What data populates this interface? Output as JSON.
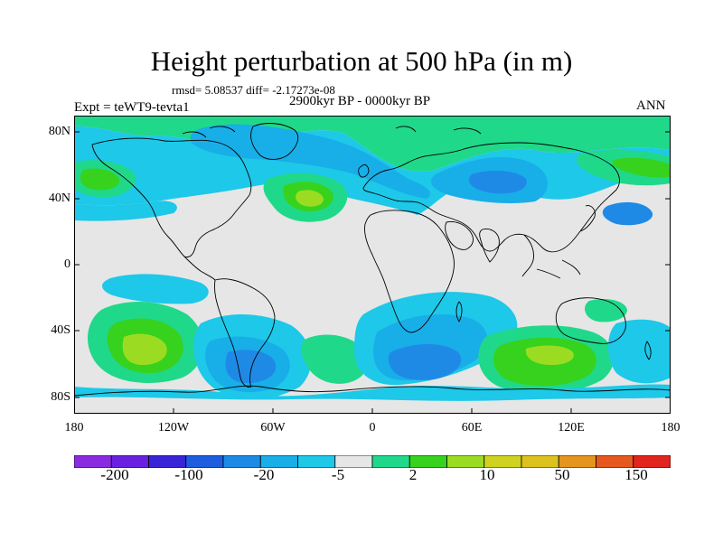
{
  "title": "Height perturbation at 500 hPa (in m)",
  "stats": "rmsd= 5.08537 diff= -2.17273e-08",
  "period": "2900kyr BP - 0000kyr BP",
  "experiment": "Expt = teWT9-tevta1",
  "season": "ANN",
  "lat_labels": [
    "80N",
    "40N",
    "0",
    "40S",
    "80S"
  ],
  "lon_labels": [
    "180",
    "120W",
    "60W",
    "0",
    "60E",
    "120E",
    "180"
  ],
  "colorbar": {
    "labels": [
      "-200",
      "-100",
      "-20",
      "-5",
      "2",
      "10",
      "50",
      "150"
    ],
    "colors": [
      "#8a2be2",
      "#6a20e0",
      "#3a24d8",
      "#1e5de0",
      "#1f8ae6",
      "#18aee8",
      "#1ec8e8",
      "#e6e6e6",
      "#20d88a",
      "#36d21e",
      "#9bdc22",
      "#cfd21e",
      "#dcc21e",
      "#e5941e",
      "#e6581e",
      "#e2241e"
    ]
  },
  "palette": {
    "ocean_land_background": "#e6e6e6",
    "weak_negative": "#1ec8e8",
    "moderate_negative": "#18aee8",
    "strong_negative": "#1f8ae6",
    "very_strong_negative": "#1e5de0",
    "weak_positive": "#20d88a",
    "moderate_positive": "#36d21e",
    "strong_positive": "#9bdc22",
    "coastline": "#000000"
  }
}
